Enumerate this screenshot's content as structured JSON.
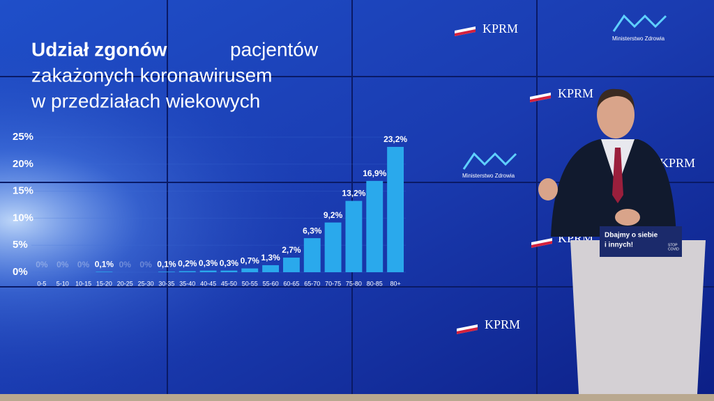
{
  "chart_data": {
    "type": "bar",
    "title_bold": "Udział zgonów",
    "title_lines": [
      "pacjentów",
      "zakażonych koronawirusem",
      "w przedziałach wiekowych"
    ],
    "categories": [
      "0-5",
      "5-10",
      "10-15",
      "15-20",
      "20-25",
      "25-30",
      "30-35",
      "35-40",
      "40-45",
      "45-50",
      "50-55",
      "55-60",
      "60-65",
      "65-70",
      "70-75",
      "75-80",
      "80-85",
      "80+"
    ],
    "values": [
      0,
      0,
      0,
      0.1,
      0,
      0,
      0.1,
      0.2,
      0.3,
      0.3,
      0.7,
      1.3,
      2.7,
      6.3,
      9.2,
      13.2,
      16.9,
      23.2
    ],
    "value_labels": [
      "0%",
      "0%",
      "0%",
      "0,1%",
      "0%",
      "0%",
      "0,1%",
      "0,2%",
      "0,3%",
      "0,3%",
      "0,7%",
      "1,3%",
      "2,7%",
      "6,3%",
      "9,2%",
      "13,2%",
      "16,9%",
      "23,2%"
    ],
    "color": "#2aa9ec",
    "ylim": [
      0,
      25
    ],
    "yticks": [
      {
        "value": 0,
        "label": "0%"
      },
      {
        "value": 5,
        "label": "5%"
      },
      {
        "value": 10,
        "label": "10%"
      },
      {
        "value": 15,
        "label": "15%"
      },
      {
        "value": 20,
        "label": "20%"
      },
      {
        "value": 25,
        "label": "25%"
      }
    ]
  },
  "kprm_logos": [
    "KPRM",
    "KPRM",
    "KPRM",
    "KPRM",
    "KPRM"
  ],
  "mz_logos": [
    "Ministerstwo Zdrowia",
    "Ministerstwo Zdrowia"
  ],
  "podium": {
    "slogan_lines": [
      "Dbajmy o siebie",
      "i innych!"
    ],
    "badge": [
      "STOP",
      "COVID"
    ]
  }
}
